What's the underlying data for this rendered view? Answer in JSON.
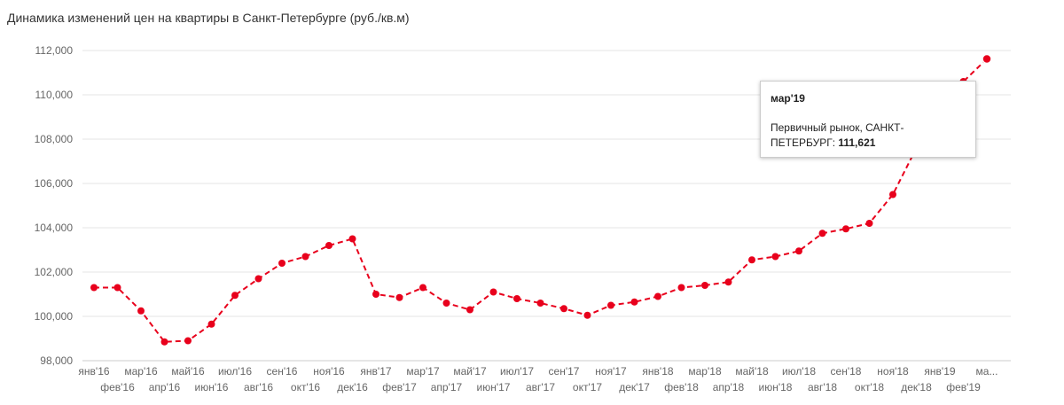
{
  "chart_data": {
    "type": "line",
    "title": "Динамика изменений цен на квартиры в Санкт-Петербурге (руб./кв.м)",
    "xlabel": "",
    "ylabel": "",
    "ylim": [
      98000,
      112000
    ],
    "yticks": [
      "98,000",
      "100,000",
      "102,000",
      "104,000",
      "106,000",
      "108,000",
      "110,000",
      "112,000"
    ],
    "categories": [
      "янв'16",
      "фев'16",
      "мар'16",
      "апр'16",
      "май'16",
      "июн'16",
      "июл'16",
      "авг'16",
      "сен'16",
      "окт'16",
      "ноя'16",
      "дек'16",
      "янв'17",
      "фев'17",
      "мар'17",
      "апр'17",
      "май'17",
      "июн'17",
      "июл'17",
      "авг'17",
      "сен'17",
      "окт'17",
      "ноя'17",
      "дек'17",
      "янв'18",
      "фев'18",
      "мар'18",
      "апр'18",
      "май'18",
      "июн'18",
      "июл'18",
      "авг'18",
      "сен'18",
      "окт'18",
      "ноя'18",
      "дек'18",
      "янв'19",
      "фев'19",
      "ма..."
    ],
    "series": [
      {
        "name": "Первичный рынок, САНКТ-ПЕТЕРБУРГ",
        "color": "#e8001c",
        "values": [
          101300,
          101300,
          100250,
          98850,
          98900,
          99650,
          100950,
          101700,
          102400,
          102700,
          103200,
          103500,
          101000,
          100850,
          101300,
          100600,
          100300,
          101100,
          100800,
          100600,
          100350,
          100050,
          100500,
          100650,
          100900,
          101300,
          101400,
          101550,
          102550,
          102700,
          102950,
          103750,
          103950,
          104200,
          105500,
          107600,
          109700,
          110600,
          111621
        ]
      }
    ],
    "grid": true,
    "legend": "none"
  },
  "tooltip": {
    "month": "мар'19",
    "label_line1": "Первичный рынок, САНКТ-",
    "label_line2": "ПЕТЕРБУРГ: ",
    "value": "111,621"
  }
}
